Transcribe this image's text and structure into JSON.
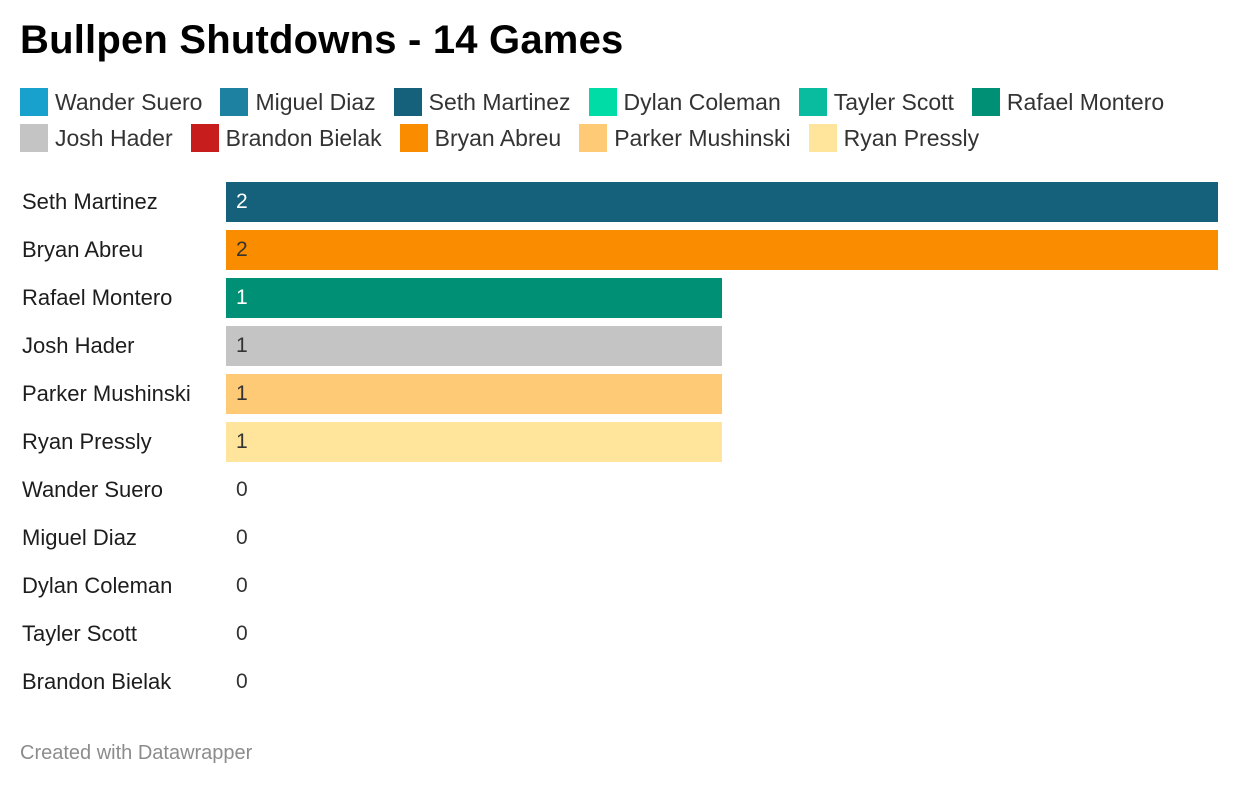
{
  "chart_data": {
    "type": "bar",
    "orientation": "horizontal",
    "title": "Bullpen Shutdowns - 14 Games",
    "legend": [
      {
        "name": "Wander Suero",
        "color": "#18a1cd"
      },
      {
        "name": "Miguel Diaz",
        "color": "#1d81a2"
      },
      {
        "name": "Seth Martinez",
        "color": "#15607a"
      },
      {
        "name": "Dylan Coleman",
        "color": "#00dca6"
      },
      {
        "name": "Tayler Scott",
        "color": "#09bb9f"
      },
      {
        "name": "Rafael Montero",
        "color": "#009076"
      },
      {
        "name": "Josh Hader",
        "color": "#c4c4c4"
      },
      {
        "name": "Brandon Bielak",
        "color": "#c71e1d"
      },
      {
        "name": "Bryan Abreu",
        "color": "#fa8c00"
      },
      {
        "name": "Parker Mushinski",
        "color": "#ffca76"
      },
      {
        "name": "Ryan Pressly",
        "color": "#ffe59c"
      }
    ],
    "categories": [
      "Seth Martinez",
      "Bryan Abreu",
      "Rafael Montero",
      "Josh Hader",
      "Parker Mushinski",
      "Ryan Pressly",
      "Wander Suero",
      "Miguel Diaz",
      "Dylan Coleman",
      "Tayler Scott",
      "Brandon Bielak"
    ],
    "values": [
      2,
      2,
      1,
      1,
      1,
      1,
      0,
      0,
      0,
      0,
      0
    ],
    "xlim": [
      0,
      2
    ]
  },
  "footer": "Created with Datawrapper"
}
